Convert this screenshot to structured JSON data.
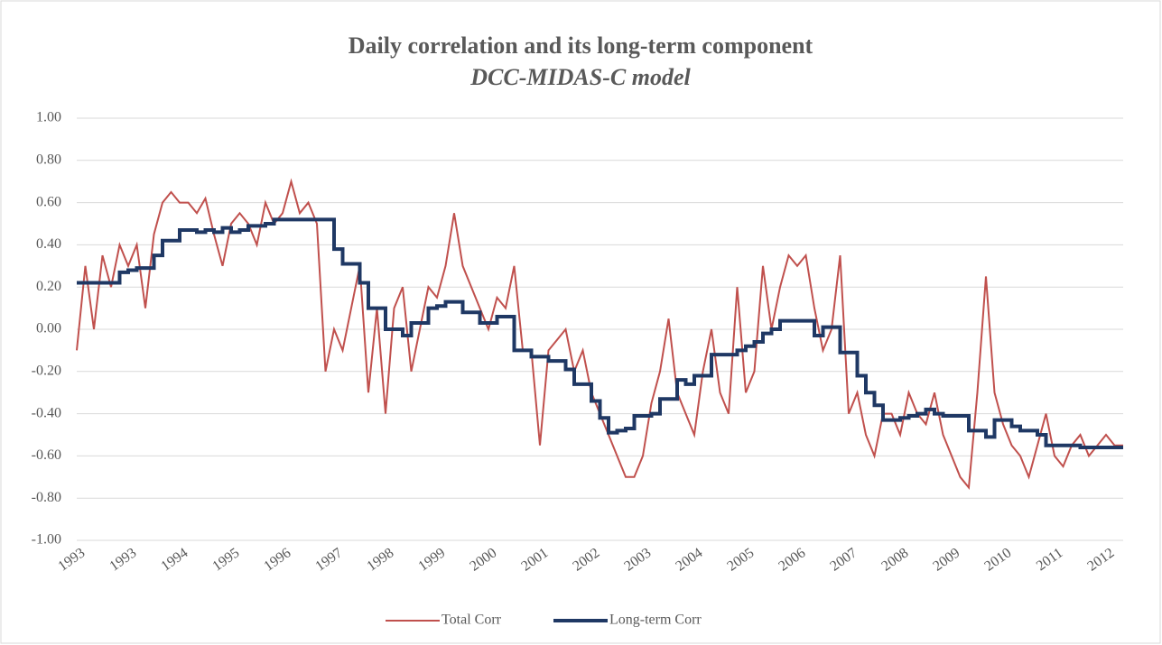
{
  "chart_data": {
    "type": "line",
    "title": "Daily correlation and its long-term component",
    "subtitle": "DCC-MIDAS-C model",
    "categories": [
      "1993",
      null,
      null,
      null,
      null,
      null,
      "1993",
      null,
      null,
      null,
      null,
      null,
      "1994",
      null,
      null,
      null,
      null,
      null,
      "1995",
      null,
      null,
      null,
      null,
      null,
      "1996",
      null,
      null,
      null,
      null,
      null,
      "1997",
      null,
      null,
      null,
      null,
      null,
      "1998",
      null,
      null,
      null,
      null,
      null,
      "1999",
      null,
      null,
      null,
      null,
      null,
      "2000",
      null,
      null,
      null,
      null,
      null,
      "2001",
      null,
      null,
      null,
      null,
      null,
      "2002",
      null,
      null,
      null,
      null,
      null,
      "2003",
      null,
      null,
      null,
      null,
      null,
      "2004",
      null,
      null,
      null,
      null,
      null,
      "2005",
      null,
      null,
      null,
      null,
      null,
      "2006",
      null,
      null,
      null,
      null,
      null,
      "2007",
      null,
      null,
      null,
      null,
      null,
      "2008",
      null,
      null,
      null,
      null,
      null,
      "2009",
      null,
      null,
      null,
      null,
      null,
      "2010",
      null,
      null,
      null,
      null,
      null,
      "2011",
      null,
      null,
      null,
      null,
      null,
      "2012",
      null,
      null
    ],
    "series": [
      {
        "name": "Total Corr",
        "color": "#c0504d",
        "values": [
          -0.1,
          0.3,
          0.0,
          0.35,
          0.2,
          0.4,
          0.3,
          0.4,
          0.1,
          0.45,
          0.6,
          0.65,
          0.6,
          0.6,
          0.55,
          0.62,
          0.45,
          0.3,
          0.5,
          0.55,
          0.5,
          0.4,
          0.6,
          0.5,
          0.55,
          0.7,
          0.55,
          0.6,
          0.5,
          -0.2,
          0.0,
          -0.1,
          0.1,
          0.3,
          -0.3,
          0.1,
          -0.4,
          0.1,
          0.2,
          -0.2,
          0.0,
          0.2,
          0.15,
          0.3,
          0.55,
          0.3,
          0.2,
          0.1,
          0.0,
          0.15,
          0.1,
          0.3,
          -0.1,
          -0.1,
          -0.55,
          -0.1,
          -0.05,
          0.0,
          -0.2,
          -0.1,
          -0.3,
          -0.4,
          -0.5,
          -0.6,
          -0.7,
          -0.7,
          -0.6,
          -0.35,
          -0.2,
          0.05,
          -0.3,
          -0.4,
          -0.5,
          -0.2,
          0.0,
          -0.3,
          -0.4,
          0.2,
          -0.3,
          -0.2,
          0.3,
          0.0,
          0.2,
          0.35,
          0.3,
          0.35,
          0.1,
          -0.1,
          0.0,
          0.35,
          -0.4,
          -0.3,
          -0.5,
          -0.6,
          -0.4,
          -0.4,
          -0.5,
          -0.3,
          -0.4,
          -0.45,
          -0.3,
          -0.5,
          -0.6,
          -0.7,
          -0.75,
          -0.3,
          0.25,
          -0.3,
          -0.45,
          -0.55,
          -0.6,
          -0.7,
          -0.55,
          -0.4,
          -0.6,
          -0.65,
          -0.55,
          -0.5,
          -0.6,
          -0.55,
          -0.5,
          -0.55,
          -0.55
        ]
      },
      {
        "name": "Long-term Corr",
        "color": "#1f3864",
        "step": true,
        "values": [
          0.22,
          0.22,
          0.22,
          0.22,
          0.22,
          0.27,
          0.28,
          0.29,
          0.29,
          0.35,
          0.42,
          0.42,
          0.47,
          0.47,
          0.46,
          0.47,
          0.46,
          0.48,
          0.46,
          0.47,
          0.49,
          0.49,
          0.5,
          0.52,
          0.52,
          0.52,
          0.52,
          0.52,
          0.52,
          0.52,
          0.38,
          0.31,
          0.31,
          0.22,
          0.1,
          0.1,
          0.0,
          0.0,
          -0.03,
          0.03,
          0.03,
          0.1,
          0.11,
          0.13,
          0.13,
          0.08,
          0.08,
          0.03,
          0.03,
          0.06,
          0.06,
          -0.1,
          -0.1,
          -0.13,
          -0.13,
          -0.15,
          -0.15,
          -0.19,
          -0.26,
          -0.26,
          -0.34,
          -0.42,
          -0.49,
          -0.48,
          -0.47,
          -0.41,
          -0.41,
          -0.4,
          -0.33,
          -0.33,
          -0.24,
          -0.26,
          -0.22,
          -0.22,
          -0.12,
          -0.12,
          -0.12,
          -0.1,
          -0.08,
          -0.06,
          -0.02,
          0.0,
          0.04,
          0.04,
          0.04,
          0.04,
          -0.03,
          0.01,
          0.01,
          -0.11,
          -0.11,
          -0.22,
          -0.3,
          -0.36,
          -0.43,
          -0.43,
          -0.42,
          -0.41,
          -0.4,
          -0.38,
          -0.4,
          -0.41,
          -0.41,
          -0.41,
          -0.48,
          -0.48,
          -0.51,
          -0.43,
          -0.43,
          -0.46,
          -0.48,
          -0.48,
          -0.5,
          -0.55,
          -0.55,
          -0.55,
          -0.55,
          -0.56,
          -0.56,
          -0.56,
          -0.56,
          -0.56,
          -0.56
        ]
      }
    ],
    "ylim": [
      -1,
      1
    ],
    "yticks": [
      {
        "value": 1,
        "label": "1.00"
      },
      {
        "value": 0.8,
        "label": "0.80"
      },
      {
        "value": 0.6,
        "label": "0.60"
      },
      {
        "value": 0.4,
        "label": "0.40"
      },
      {
        "value": 0.2,
        "label": "0.20"
      },
      {
        "value": 0,
        "label": "0.00"
      },
      {
        "value": -0.2,
        "label": "-0.20"
      },
      {
        "value": -0.4,
        "label": "-0.40"
      },
      {
        "value": -0.6,
        "label": "-0.60"
      },
      {
        "value": -0.8,
        "label": "-0.80"
      },
      {
        "value": -1,
        "label": "-1.00"
      }
    ],
    "grid": true,
    "legend": "bottom"
  }
}
